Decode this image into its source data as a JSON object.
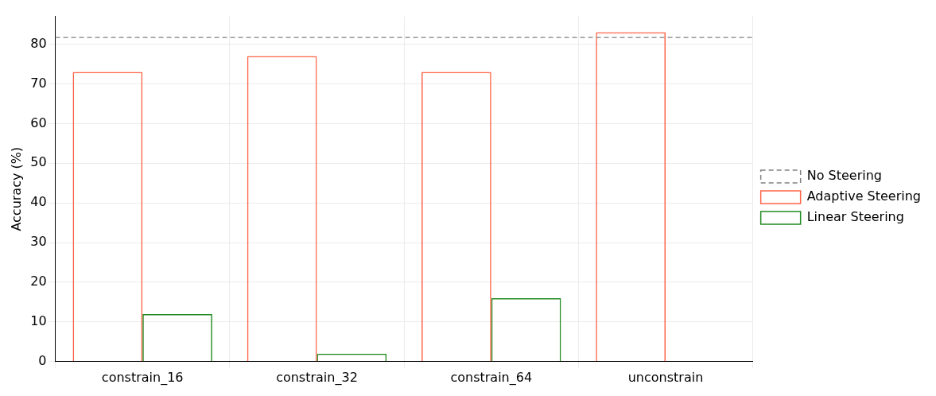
{
  "chart_data": {
    "type": "bar",
    "ylabel": "Accuracy (%)",
    "categories": [
      "constrain_16",
      "constrain_32",
      "constrain_64",
      "unconstrain"
    ],
    "series": [
      {
        "name": "Adaptive Steering",
        "color": "#ff6347",
        "values": [
          73,
          77,
          73,
          83
        ]
      },
      {
        "name": "Linear Steering",
        "color": "#228b22",
        "values": [
          12,
          2,
          16,
          0
        ]
      }
    ],
    "ylim": [
      0,
      87
    ],
    "yticks": [
      0,
      10,
      20,
      30,
      40,
      50,
      60,
      70,
      80
    ],
    "grid": true,
    "legend": "right",
    "ref_lines": [
      {
        "axis": "y",
        "value": 81.7,
        "label": "No Steering",
        "color": "#808080",
        "line_style": "dashed"
      }
    ]
  }
}
